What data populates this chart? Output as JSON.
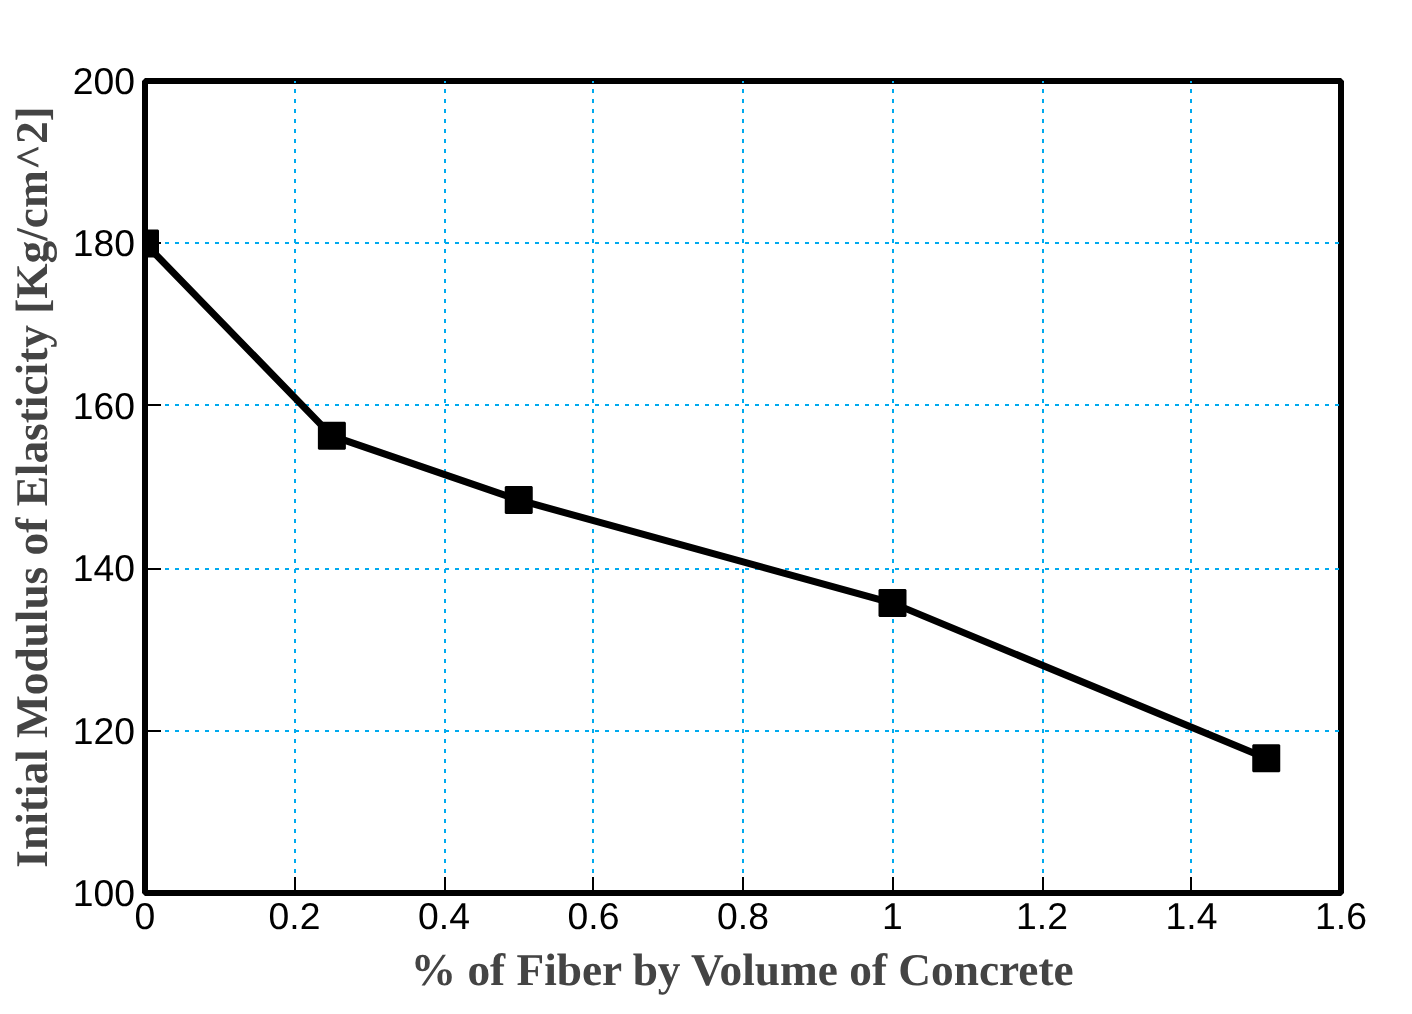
{
  "chart_data": {
    "type": "line",
    "xlabel": "% of Fiber by Volume of Concrete",
    "ylabel": "Initial Modulus of Elasticity [Kg/cm^2]",
    "x": [
      0,
      0.25,
      0.5,
      1,
      1.5
    ],
    "series": [
      {
        "color": "#000000",
        "values": [
          180,
          156.3,
          148.4,
          135.7,
          116.6
        ]
      }
    ],
    "xlim": [
      0,
      1.6
    ],
    "xticks": [
      0,
      0.2,
      0.4,
      0.6,
      0.8,
      1,
      1.2,
      1.4,
      1.6
    ],
    "ylim": [
      100,
      200
    ],
    "yticks": [
      100,
      120,
      140,
      160,
      180,
      200
    ],
    "grid": true,
    "marker": "square",
    "line_style": "solid"
  }
}
